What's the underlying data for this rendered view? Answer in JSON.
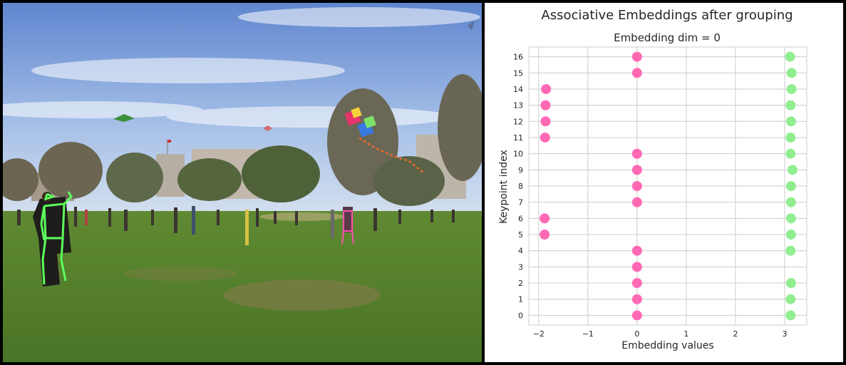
{
  "chart_data": {
    "type": "scatter",
    "title": "Associative Embeddings after grouping",
    "subtitle": "Embedding dim = 0",
    "xlabel": "Embedding values",
    "ylabel": "Keypoint index",
    "xlim": [
      -2.2,
      3.45
    ],
    "ylim": [
      -0.6,
      16.6
    ],
    "xticks": [
      -2,
      -1,
      0,
      1,
      2,
      3
    ],
    "yticks": [
      0,
      1,
      2,
      3,
      4,
      5,
      6,
      7,
      8,
      9,
      10,
      11,
      12,
      13,
      14,
      15,
      16
    ],
    "grid": true,
    "series": [
      {
        "color": "#ff69b4",
        "points": [
          {
            "x": 0.0,
            "y": 0
          },
          {
            "x": 0.0,
            "y": 1
          },
          {
            "x": 0.0,
            "y": 2
          },
          {
            "x": 0.0,
            "y": 3
          },
          {
            "x": 0.0,
            "y": 4
          },
          {
            "x": -1.88,
            "y": 5
          },
          {
            "x": -1.88,
            "y": 6
          },
          {
            "x": 0.0,
            "y": 7
          },
          {
            "x": 0.0,
            "y": 8
          },
          {
            "x": 0.0,
            "y": 9
          },
          {
            "x": 0.0,
            "y": 10
          },
          {
            "x": -1.87,
            "y": 11
          },
          {
            "x": -1.86,
            "y": 12
          },
          {
            "x": -1.86,
            "y": 13
          },
          {
            "x": -1.85,
            "y": 14
          },
          {
            "x": 0.0,
            "y": 15
          },
          {
            "x": 0.0,
            "y": 16
          }
        ]
      },
      {
        "color": "#90ee90",
        "points": [
          {
            "x": 3.12,
            "y": 0
          },
          {
            "x": 3.12,
            "y": 1
          },
          {
            "x": 3.13,
            "y": 2
          },
          {
            "x": 3.12,
            "y": 4
          },
          {
            "x": 3.13,
            "y": 5
          },
          {
            "x": 3.13,
            "y": 6
          },
          {
            "x": 3.13,
            "y": 7
          },
          {
            "x": 3.13,
            "y": 8
          },
          {
            "x": 3.16,
            "y": 9
          },
          {
            "x": 3.12,
            "y": 10
          },
          {
            "x": 3.12,
            "y": 11
          },
          {
            "x": 3.13,
            "y": 12
          },
          {
            "x": 3.12,
            "y": 13
          },
          {
            "x": 3.14,
            "y": 14
          },
          {
            "x": 3.14,
            "y": 15
          },
          {
            "x": 3.11,
            "y": 16
          }
        ]
      }
    ]
  },
  "photo": {
    "sky_top": "#6f92d4",
    "sky_bottom": "#c4d5ee",
    "grass": "#4f7a2a",
    "skeleton_color": "#5cff5c",
    "skeleton_2_color": "#ff4fb0"
  }
}
